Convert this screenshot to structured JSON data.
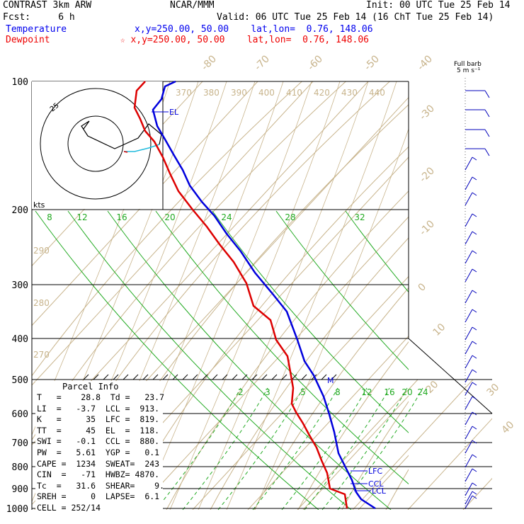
{
  "header": {
    "model": "CONTRAST  3km ARW",
    "fcst": "Fcst:     6 h",
    "org": "NCAR/MMM",
    "init": "Init: 00 UTC Tue 25 Feb 14",
    "valid": "Valid: 06 UTC Tue 25 Feb 14 (16 ChT Tue 25 Feb 14)",
    "temperature_label": "Temperature",
    "temperature_loc": "x,y=250.00, 50.00    lat,lon=  0.76, 148.06",
    "dewpoint_label": "Dewpoint",
    "dewpoint_loc": "x,y=250.00, 50.00    lat,lon=  0.76, 148.06",
    "barb_title1": "Full barb",
    "barb_title2": "5 m s⁻¹",
    "colors": {
      "temperature": "#0000dd",
      "dewpoint": "#dd0000",
      "label_temp": "#0000ee",
      "label_dew": "#ee0000"
    }
  },
  "chart_data": {
    "type": "line",
    "pressure_labels": [
      "100",
      "200",
      "300",
      "400",
      "500",
      "600",
      "700",
      "800",
      "900",
      "1000"
    ],
    "temperature_iso_labels": [
      "-80",
      "-70",
      "-60",
      "-50",
      "-40",
      "-30",
      "-20",
      "-10",
      "0",
      "10",
      "20",
      "30",
      "40"
    ],
    "theta_labels": [
      "370",
      "380",
      "390",
      "400",
      "410",
      "420",
      "430",
      "440"
    ],
    "theta_side_labels": [
      "290",
      "280",
      "270"
    ],
    "mixing_ratio_upper": [
      "8",
      "12",
      "16",
      "20",
      "24",
      "28",
      "32"
    ],
    "mixing_ratio_lower": [
      "2",
      "3",
      "5",
      "8",
      "12",
      "16",
      "20",
      "24"
    ],
    "levels": [
      {
        "name": "EL",
        "label": "EL"
      },
      {
        "name": "LFC",
        "label": "LFC"
      },
      {
        "name": "CCL",
        "label": "CCL"
      },
      {
        "name": "LCL",
        "label": "LCL"
      }
    ],
    "hodograph": {
      "kts_label": "kts",
      "ring_label": "25"
    },
    "parcel_marker": "M"
  },
  "parcel_info": {
    "title": "Parcel Info",
    "rows": [
      "T   =    28.8  Td =   23.7",
      "LI  =   -3.7  LCL =  913.",
      "K   =     35  LFC =  819.",
      "TT  =     45  EL  =  118.",
      "SWI =   -0.1  CCL =  880.",
      "PW  =   5.61  YGP =   0.1",
      "CAPE =  1234  SWEAT=  243",
      "CIN  =   -71  HWBZ= 4870.",
      "Tc  =   31.6  SHEAR=    9.",
      "SREH =     0  LAPSE=  6.1",
      "CELL = 252/14"
    ]
  }
}
